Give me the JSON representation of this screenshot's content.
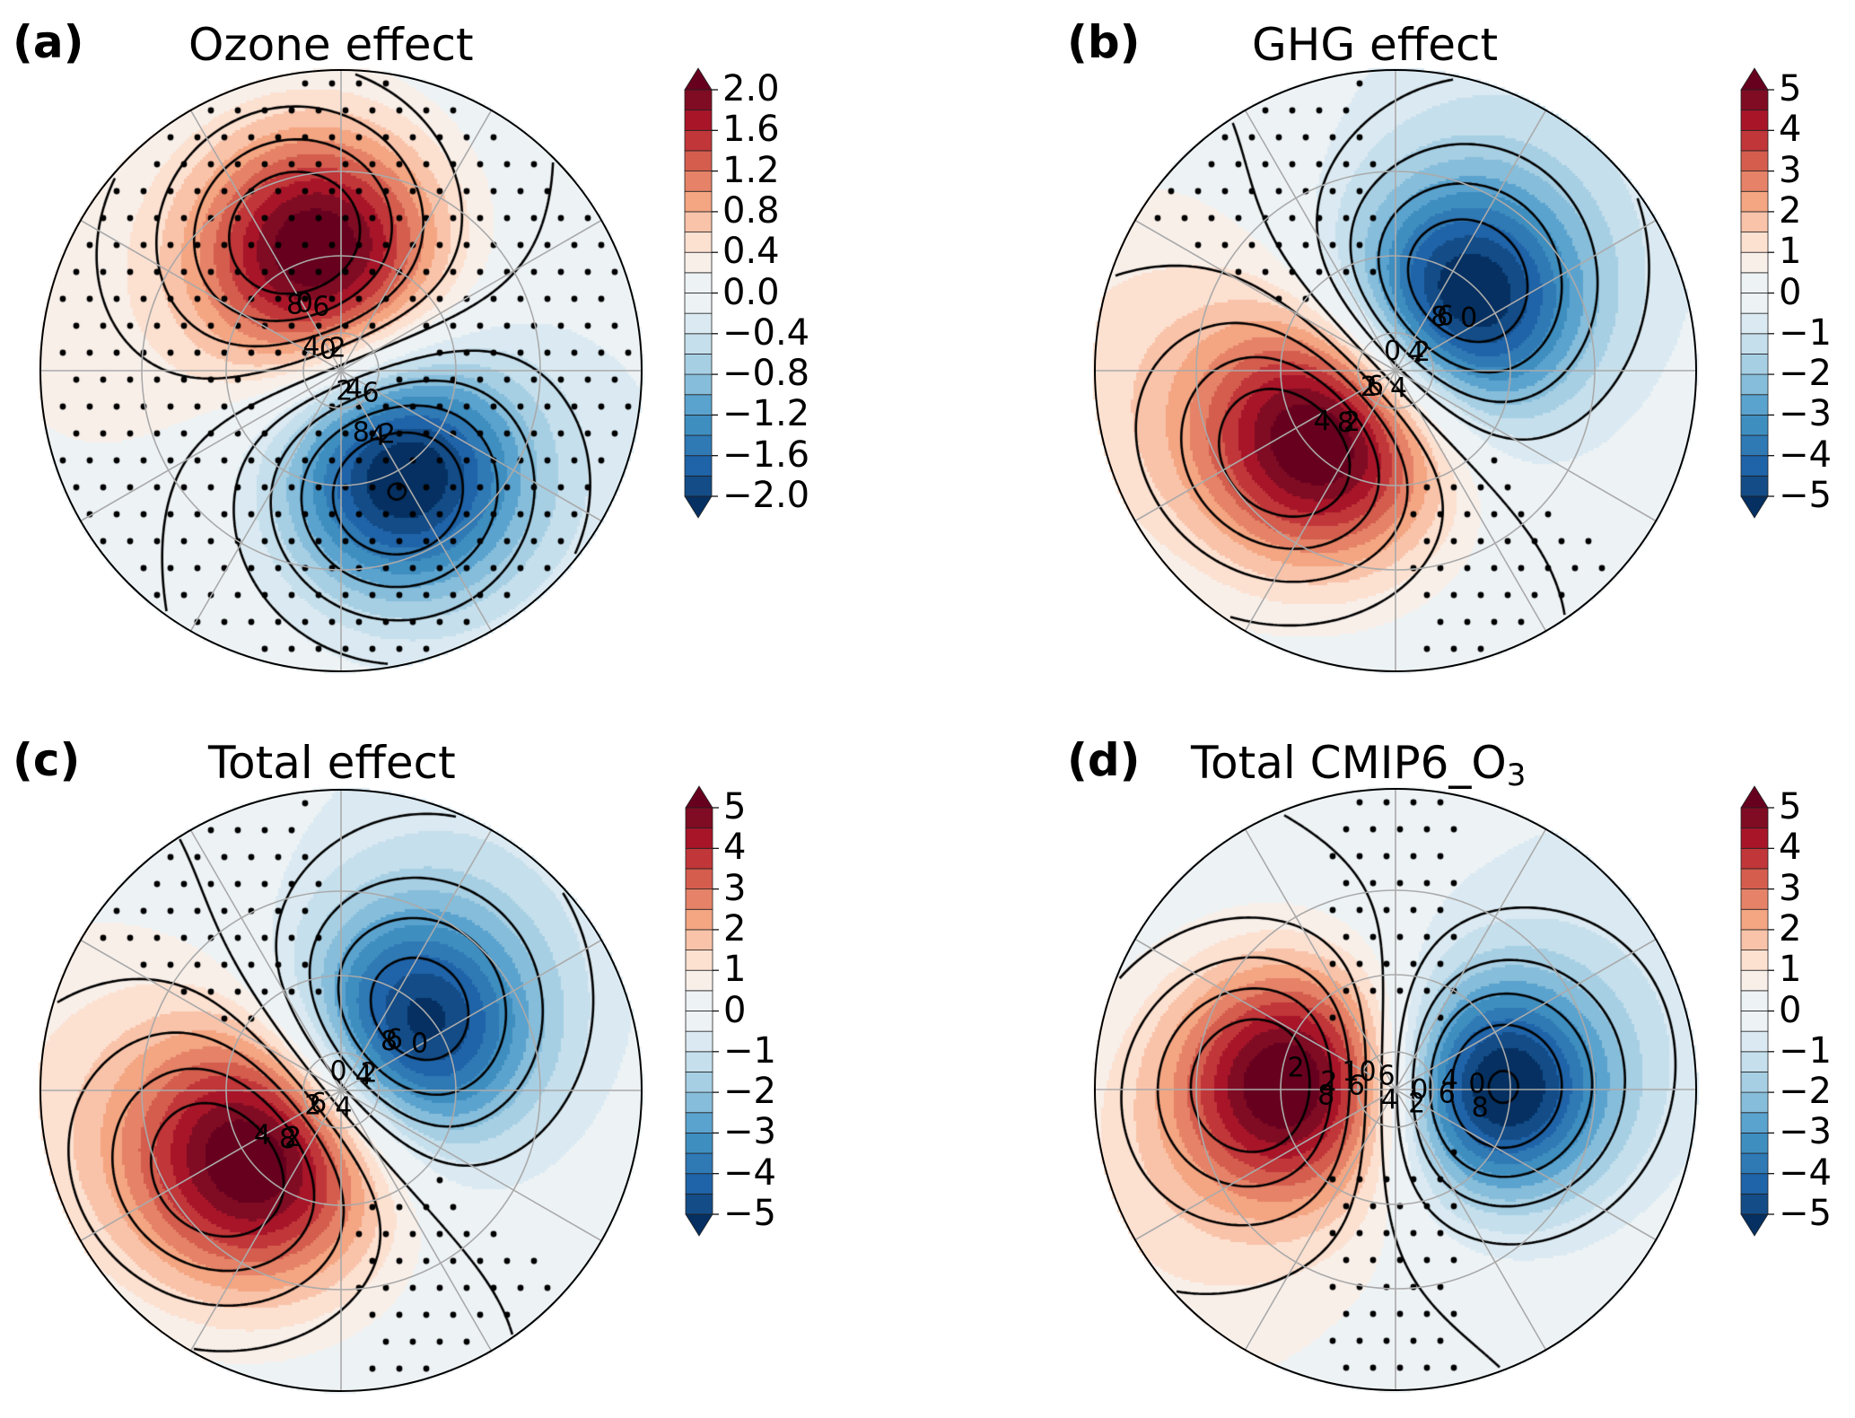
{
  "figure": {
    "colormap_levels_note": "diverging red-blue filled contours with stippling for significance",
    "colormap": [
      "#053061",
      "#134c87",
      "#1f63a8",
      "#2f79b5",
      "#3f8ec0",
      "#5ba3cf",
      "#86bdda",
      "#a7cfe4",
      "#c5dfec",
      "#dbeaf2",
      "#edf2f5",
      "#f8efe9",
      "#fce0d0",
      "#f9c3a9",
      "#f4a582",
      "#e58267",
      "#d45d4e",
      "#c13639",
      "#a81529",
      "#7f0c23",
      "#67001f"
    ],
    "over_color": "#67001f",
    "under_color": "#053061"
  },
  "panels": [
    {
      "id": "a",
      "label": "(a)",
      "title": "Ozone effect",
      "title_sub": "",
      "colorbar": {
        "min": -2.0,
        "max": 2.0,
        "step": 0.2,
        "extend": "both",
        "ticks": [
          "2.0",
          "1.6",
          "1.2",
          "0.8",
          "0.4",
          "0.0",
          "−0.4",
          "−0.8",
          "−1.2",
          "−1.6",
          "−2.0"
        ],
        "tick_values": [
          2.0,
          1.6,
          1.2,
          0.8,
          0.4,
          0.0,
          -0.4,
          -0.8,
          -1.2,
          -1.6,
          -2.0
        ]
      },
      "shading": {
        "anomalies": [
          {
            "lon_deg": 100,
            "colat_deg": 28,
            "amp": 2.2,
            "spread_deg": 20
          },
          {
            "lon_deg": -60,
            "colat_deg": 28,
            "amp": -2.2,
            "spread_deg": 20
          },
          {
            "lon_deg": 170,
            "colat_deg": 55,
            "amp": 0.25,
            "spread_deg": 40
          },
          {
            "lon_deg": -20,
            "colat_deg": 60,
            "amp": -0.2,
            "spread_deg": 40
          }
        ],
        "stippling": "widespread"
      },
      "contours": {
        "labels": [
          "-4",
          "-2",
          "-8",
          "-6",
          "-2",
          "-4",
          "0",
          "2",
          "4",
          "6",
          "8",
          "0"
        ],
        "note": "dashed negative, solid non-negative"
      }
    },
    {
      "id": "b",
      "label": "(b)",
      "title": "GHG effect",
      "title_sub": "",
      "colorbar": {
        "min": -5,
        "max": 5,
        "step": 0.5,
        "extend": "both",
        "ticks": [
          "5",
          "4",
          "3",
          "2",
          "1",
          "0",
          "−1",
          "−2",
          "−3",
          "−4",
          "−5"
        ],
        "tick_values": [
          5,
          4,
          3,
          2,
          1,
          0,
          -1,
          -2,
          -3,
          -4,
          -5
        ]
      },
      "shading": {
        "anomalies": [
          {
            "lon_deg": 45,
            "colat_deg": 22,
            "amp": -5.5,
            "spread_deg": 20
          },
          {
            "lon_deg": -135,
            "colat_deg": 22,
            "amp": 5.5,
            "spread_deg": 20
          },
          {
            "lon_deg": 180,
            "colat_deg": 55,
            "amp": 1.2,
            "spread_deg": 35
          },
          {
            "lon_deg": 60,
            "colat_deg": 60,
            "amp": -0.8,
            "spread_deg": 40
          }
        ],
        "stippling": "sparse-northwest-southeast"
      },
      "contours": {
        "labels": [
          "-4",
          "-2",
          "-8",
          "-6",
          "-2",
          "-4",
          "0",
          "2",
          "4",
          "6",
          "8",
          "0"
        ],
        "note": "dashed negative, solid non-negative"
      }
    },
    {
      "id": "c",
      "label": "(c)",
      "title": "Total effect",
      "title_sub": "",
      "colorbar": {
        "min": -5,
        "max": 5,
        "step": 0.5,
        "extend": "both",
        "ticks": [
          "5",
          "4",
          "3",
          "2",
          "1",
          "0",
          "−1",
          "−2",
          "−3",
          "−4",
          "−5"
        ],
        "tick_values": [
          5,
          4,
          3,
          2,
          1,
          0,
          -1,
          -2,
          -3,
          -4,
          -5
        ]
      },
      "shading": {
        "anomalies": [
          {
            "lon_deg": 40,
            "colat_deg": 22,
            "amp": -5.2,
            "spread_deg": 20
          },
          {
            "lon_deg": -140,
            "colat_deg": 24,
            "amp": 5.4,
            "spread_deg": 21
          },
          {
            "lon_deg": 180,
            "colat_deg": 55,
            "amp": 1.0,
            "spread_deg": 35
          },
          {
            "lon_deg": 60,
            "colat_deg": 60,
            "amp": -0.7,
            "spread_deg": 40
          }
        ],
        "stippling": "sparse-northwest-southeast"
      },
      "contours": {
        "labels": [
          "-4",
          "-2",
          "-8",
          "-6",
          "-2",
          "-4",
          "0",
          "2",
          "4",
          "6",
          "8",
          "0"
        ],
        "note": "dashed negative, solid non-negative"
      }
    },
    {
      "id": "d",
      "label": "(d)",
      "title": "Total CMIP6_O",
      "title_sub": "3",
      "colorbar": {
        "min": -5,
        "max": 5,
        "step": 0.5,
        "extend": "both",
        "ticks": [
          "5",
          "4",
          "3",
          "2",
          "1",
          "0",
          "−1",
          "−2",
          "−3",
          "−4",
          "−5"
        ],
        "tick_values": [
          5,
          4,
          3,
          2,
          1,
          0,
          -1,
          -2,
          -3,
          -4,
          -5
        ]
      },
      "shading": {
        "anomalies": [
          {
            "lon_deg": 0,
            "colat_deg": 24,
            "amp": -5.5,
            "spread_deg": 18
          },
          {
            "lon_deg": 175,
            "colat_deg": 24,
            "amp": 5.3,
            "spread_deg": 19
          },
          {
            "lon_deg": -150,
            "colat_deg": 55,
            "amp": 1.0,
            "spread_deg": 35
          },
          {
            "lon_deg": 30,
            "colat_deg": 60,
            "amp": -0.7,
            "spread_deg": 40
          }
        ],
        "stippling": "central-meridian-band"
      },
      "contours": {
        "labels": [
          "-2",
          "-2",
          "-8",
          "-10",
          "-6",
          "-4",
          "-6",
          "0",
          "2",
          "4",
          "6",
          "8",
          "0"
        ],
        "note": "dashed negative, solid non-negative"
      }
    }
  ]
}
